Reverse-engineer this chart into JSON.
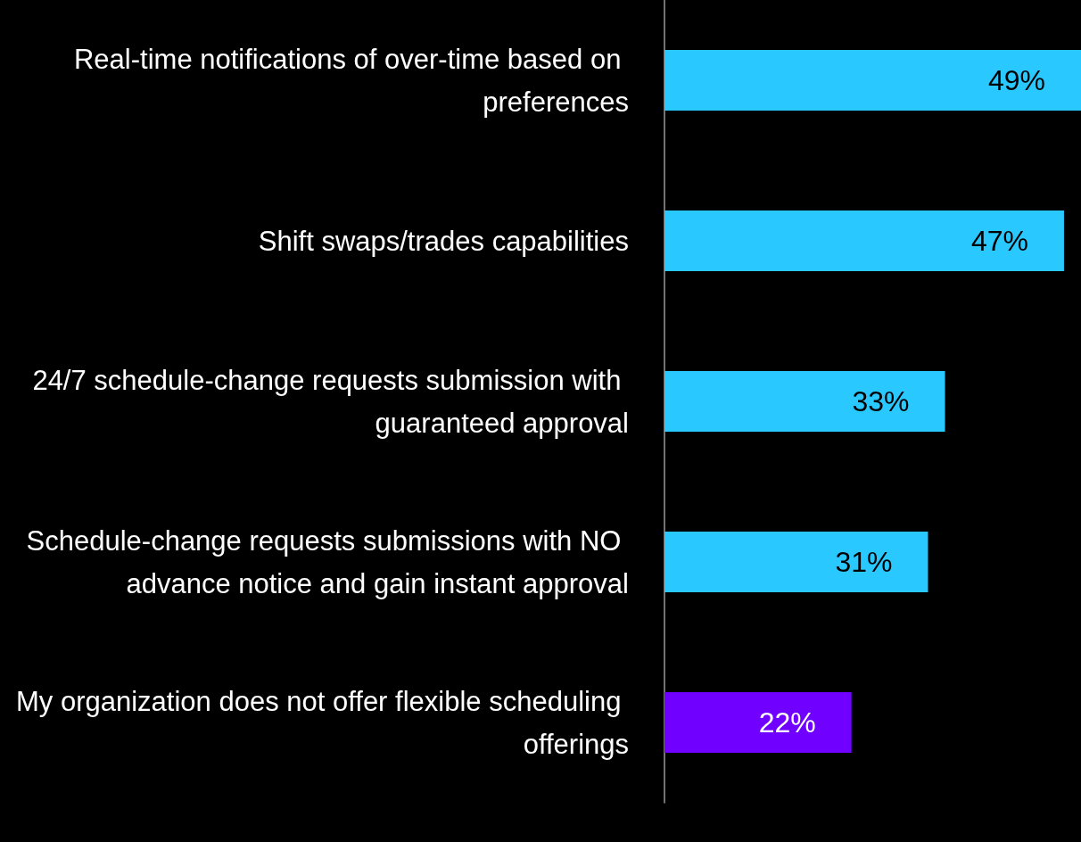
{
  "chart_data": {
    "type": "bar",
    "orientation": "horizontal",
    "categories": [
      "Real-time notifications of over-time based on preferences",
      "Shift swaps/trades capabilities",
      "24/7 schedule-change requests submission with guaranteed approval",
      "Schedule-change requests submissions with NO advance notice and gain instant approval",
      "My organization does not offer flexible scheduling offerings"
    ],
    "values": [
      49,
      47,
      33,
      31,
      22
    ],
    "value_labels": [
      "49%",
      "47%",
      "33%",
      "31%",
      "22%"
    ],
    "colors": [
      "#29c9ff",
      "#29c9ff",
      "#29c9ff",
      "#29c9ff",
      "#7000ff"
    ]
  }
}
